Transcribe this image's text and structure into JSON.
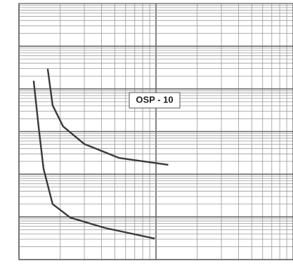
{
  "chart_data": {
    "type": "line",
    "annotation": "OSP - 10",
    "xlog": true,
    "ylog": true,
    "grid": true,
    "xlim": [
      1,
      100
    ],
    "ylim": [
      0.01,
      10000
    ],
    "series": [
      {
        "color": "#3a3a3a",
        "x": [
          1.28,
          1.39,
          1.51,
          1.76,
          2.37,
          4.27,
          9.8
        ],
        "values": [
          155,
          13.2,
          1.36,
          0.2,
          0.096,
          0.055,
          0.031
        ]
      },
      {
        "color": "#3a3a3a",
        "x": [
          1.62,
          1.76,
          2.1,
          3.0,
          5.4,
          12.3
        ],
        "values": [
          295,
          41,
          13.2,
          5.1,
          2.4,
          1.66
        ]
      }
    ]
  }
}
